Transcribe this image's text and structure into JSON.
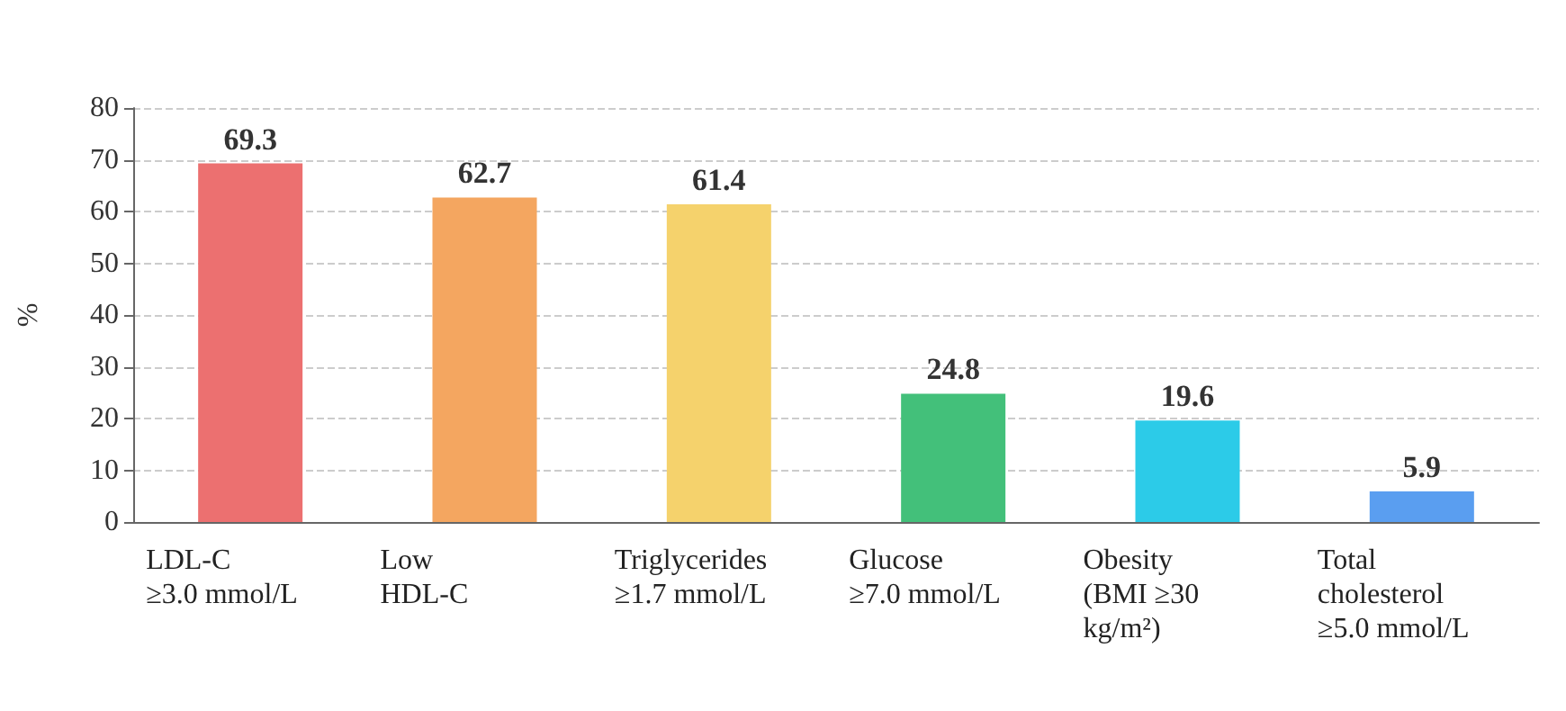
{
  "chart_data": {
    "type": "bar",
    "ylabel": "%",
    "categories": [
      "LDL-C\n≥3.0 mmol/L",
      "Low\nHDL-C",
      "Triglycerides\n≥1.7 mmol/L",
      "Glucose\n≥7.0 mmol/L",
      "Obesity\n(BMI ≥30\nkg/m²)",
      "Total\ncholesterol\n≥5.0 mmol/L"
    ],
    "values": [
      69.3,
      62.7,
      61.4,
      24.8,
      19.6,
      5.9
    ],
    "colors": [
      "#ec7070",
      "#f4a660",
      "#f5d26c",
      "#43c07a",
      "#2ccbe8",
      "#5a9ef0"
    ],
    "ylim": [
      0,
      80
    ],
    "yticks": [
      0,
      10,
      20,
      30,
      40,
      50,
      60,
      70,
      80
    ],
    "grid": "y",
    "data_labels": true
  }
}
